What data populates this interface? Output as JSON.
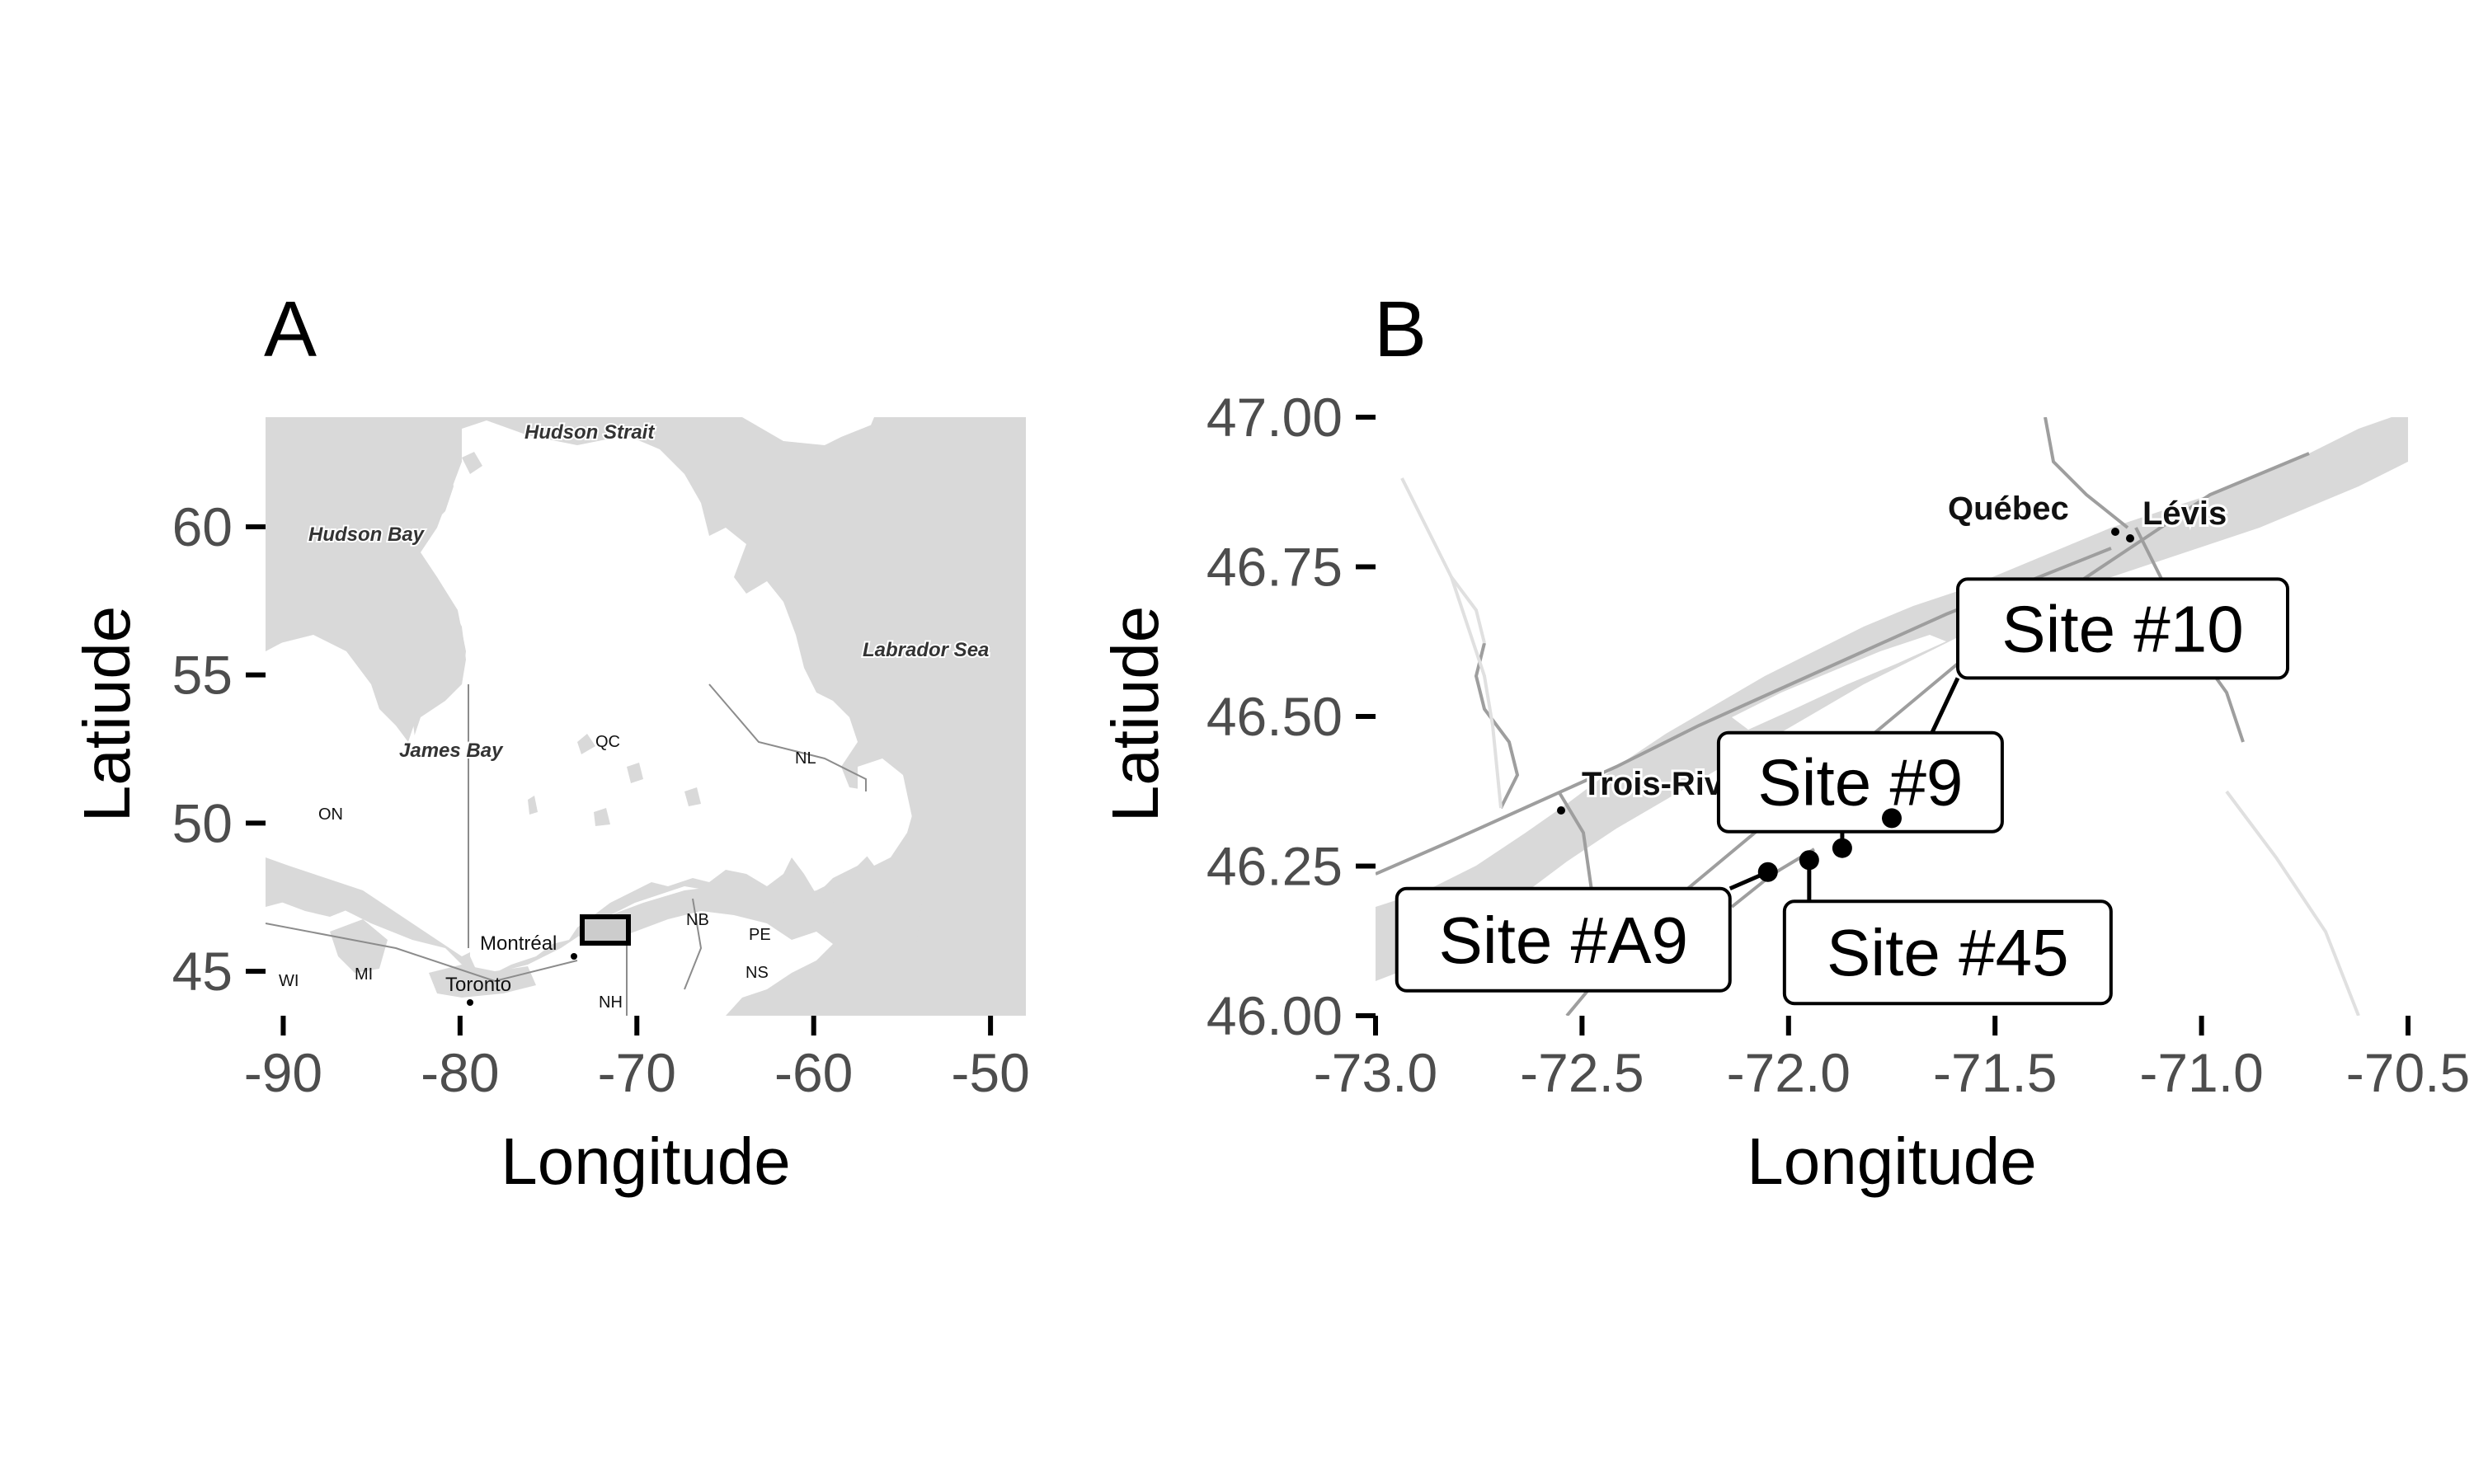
{
  "panel_a": {
    "letter": "A",
    "xlabel": "Longitude",
    "ylabel": "Latiude",
    "x_ticks": [
      -90,
      -80,
      -70,
      -60,
      -50
    ],
    "y_ticks": [
      45,
      50,
      55,
      60
    ],
    "x_tick_labels": [
      "-90",
      "-80",
      "-70",
      "-60",
      "-50"
    ],
    "y_tick_labels": [
      "45",
      "50",
      "55",
      "60"
    ],
    "xlim": [
      -91,
      -48
    ],
    "ylim": [
      43.5,
      63.7
    ],
    "water_labels": [
      "Hudson Strait",
      "Hudson Bay",
      "Labrador Sea",
      "James Bay"
    ],
    "region_labels": [
      "QC",
      "ON",
      "NL",
      "NB",
      "PE",
      "NS",
      "NH",
      "WI",
      "MI"
    ],
    "city_labels": [
      "Montréal",
      "Toronto"
    ],
    "study_area": {
      "lon_min": -73,
      "lon_max": -70.5,
      "lat_min": 46,
      "lat_max": 47
    },
    "colors": {
      "land": "#ffffff",
      "water": "#d9d9d9",
      "border": "#8c8c8c",
      "highlight": "#cccccc"
    }
  },
  "panel_b": {
    "letter": "B",
    "xlabel": "Longitude",
    "ylabel": "Latiude",
    "x_ticks": [
      -73.0,
      -72.5,
      -72.0,
      -71.5,
      -71.0,
      -70.5
    ],
    "y_ticks": [
      46.0,
      46.25,
      46.5,
      46.75,
      47.0
    ],
    "x_tick_labels": [
      "-73.0",
      "-72.5",
      "-72.0",
      "-71.5",
      "-71.0",
      "-70.5"
    ],
    "y_tick_labels": [
      "46.00",
      "46.25",
      "46.50",
      "46.75",
      "47.00"
    ],
    "xlim": [
      -73.0,
      -70.5
    ],
    "ylim": [
      46.0,
      47.0
    ],
    "cities": [
      {
        "name": "Québec",
        "lon": -71.22,
        "lat": 46.81
      },
      {
        "name": "Lévis",
        "lon": -71.18,
        "lat": 46.8
      },
      {
        "name": "Trois-Rivières",
        "lon": -72.55,
        "lat": 46.35
      }
    ],
    "sites": [
      {
        "name": "Site #10",
        "lon": -71.75,
        "lat": 46.33
      },
      {
        "name": "Site #9",
        "lon": -71.87,
        "lat": 46.28
      },
      {
        "name": "Site #A9",
        "lon": -72.05,
        "lat": 46.24
      },
      {
        "name": "Site #45",
        "lon": -71.95,
        "lat": 46.26
      }
    ],
    "colors": {
      "water": "#d9d9d9",
      "road": "#9e9e9e",
      "point": "#000000"
    }
  }
}
